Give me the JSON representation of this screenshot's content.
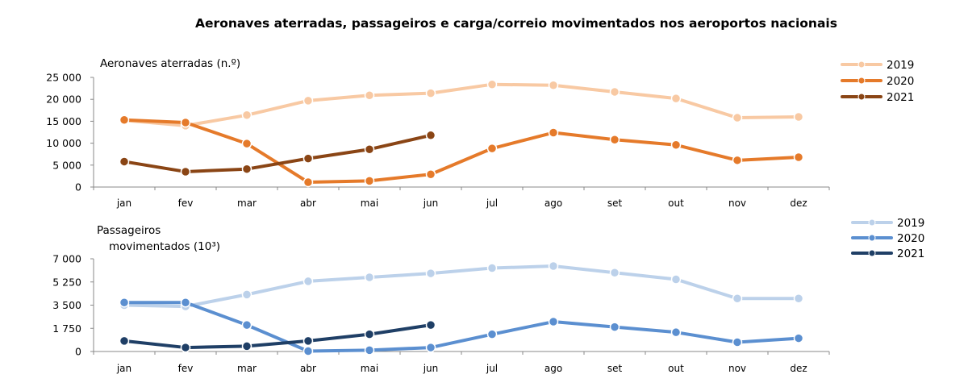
{
  "page_title": "Aeronaves aterradas, passageiros e carga/correio movimentados nos aeroportos nacionais",
  "chart_data": [
    {
      "type": "line",
      "title": "",
      "ylabel": "Aeronaves aterradas (n.º)",
      "categories": [
        "jan",
        "fev",
        "mar",
        "abr",
        "mai",
        "jun",
        "jul",
        "ago",
        "set",
        "out",
        "nov",
        "dez"
      ],
      "ylim": [
        0,
        25000
      ],
      "yticks": [
        0,
        5000,
        10000,
        15000,
        20000,
        25000
      ],
      "ytick_labels": [
        "0",
        "5 000",
        "10 000",
        "15 000",
        "20 000",
        "25 000"
      ],
      "legend_position": "top-right",
      "series": [
        {
          "name": "2019",
          "color": "#f8c9a3",
          "values": [
            15200,
            14000,
            16400,
            19700,
            20900,
            21400,
            23400,
            23200,
            21700,
            20200,
            15800,
            16000
          ]
        },
        {
          "name": "2020",
          "color": "#e57a2a",
          "values": [
            15300,
            14700,
            9900,
            1100,
            1400,
            2900,
            8800,
            12400,
            10800,
            9600,
            6100,
            6800
          ]
        },
        {
          "name": "2021",
          "color": "#8a4515",
          "values": [
            5800,
            3500,
            4100,
            6500,
            8600,
            11800,
            null,
            null,
            null,
            null,
            null,
            null
          ]
        }
      ]
    },
    {
      "type": "line",
      "title": "",
      "ylabel_line1": "Passageiros",
      "ylabel_line2": "movimentados (10³)",
      "categories": [
        "jan",
        "fev",
        "mar",
        "abr",
        "mai",
        "jun",
        "jul",
        "ago",
        "set",
        "out",
        "nov",
        "dez"
      ],
      "ylim": [
        0,
        7000
      ],
      "yticks": [
        0,
        1750,
        3500,
        5250,
        7000
      ],
      "ytick_labels": [
        "0",
        "1 750",
        "3 500",
        "5 250",
        "7 000"
      ],
      "legend_position": "top-right",
      "series": [
        {
          "name": "2019",
          "color": "#bcd1ea",
          "values": [
            3500,
            3400,
            4300,
            5300,
            5600,
            5900,
            6300,
            6450,
            5950,
            5450,
            4000,
            4000
          ]
        },
        {
          "name": "2020",
          "color": "#5b8fd0",
          "values": [
            3700,
            3700,
            2000,
            30,
            100,
            300,
            1300,
            2250,
            1850,
            1450,
            700,
            1000
          ]
        },
        {
          "name": "2021",
          "color": "#1f3f66",
          "values": [
            800,
            300,
            400,
            800,
            1300,
            2000,
            null,
            null,
            null,
            null,
            null,
            null
          ]
        }
      ]
    }
  ]
}
